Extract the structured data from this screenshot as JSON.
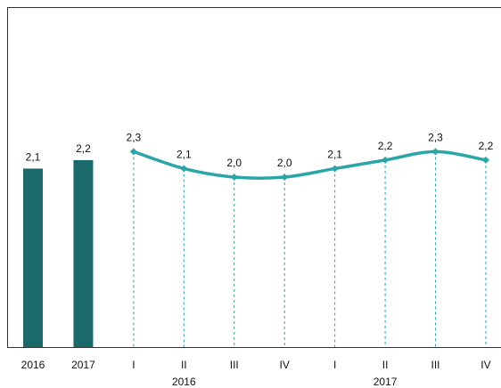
{
  "chart_data": {
    "type": "combo",
    "categories": [
      "2016",
      "2017",
      "I",
      "II",
      "III",
      "IV",
      "I",
      "II",
      "III",
      "IV"
    ],
    "x_groups": [
      "2016",
      "2017"
    ],
    "series": [
      {
        "kind": "bar",
        "color": "#1b6a6b",
        "values": [
          2.1,
          2.2,
          null,
          null,
          null,
          null,
          null,
          null,
          null,
          null
        ],
        "value_labels": [
          "2,1",
          "2,2",
          null,
          null,
          null,
          null,
          null,
          null,
          null,
          null
        ]
      },
      {
        "kind": "line",
        "color": "#2aa5a8",
        "values": [
          null,
          null,
          2.3,
          2.1,
          2.0,
          2.0,
          2.1,
          2.2,
          2.3,
          2.2
        ],
        "value_labels": [
          null,
          null,
          "2,3",
          "2,1",
          "2,0",
          "2,0",
          "2,1",
          "2,2",
          "2,3",
          "2,2"
        ]
      }
    ],
    "ylim": [
      0,
      4
    ]
  }
}
